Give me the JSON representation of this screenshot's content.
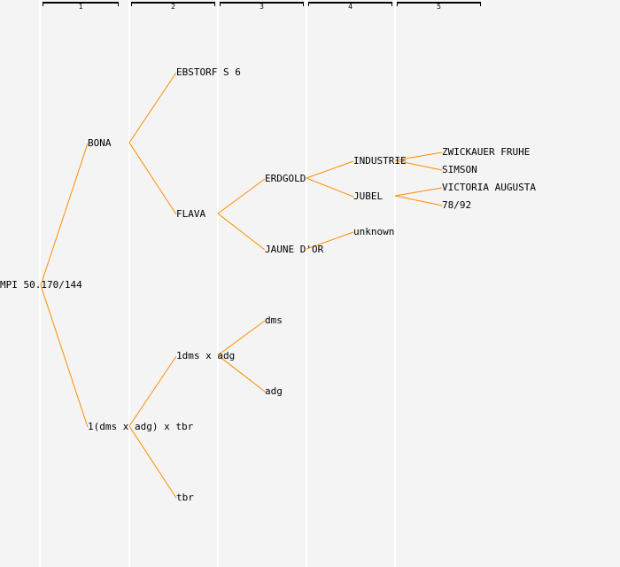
{
  "generations": [
    "1",
    "2",
    "3",
    "4",
    "5"
  ],
  "line_color": "#ff8c00",
  "nodes": {
    "root": "MPI 50.170/144",
    "bona": "BONA",
    "cross1": "1(dms x adg) x tbr",
    "ebstorf": "EBSTORF S 6",
    "flava": "FLAVA",
    "cross2": "1dms x adg",
    "tbr": "tbr",
    "erdgold": "ERDGOLD",
    "jaune": "JAUNE D'OR",
    "dms": "dms",
    "adg": "adg",
    "industrie": "INDUSTRIE",
    "jubel": "JUBEL",
    "unknown": "unknown",
    "zwickauer": "ZWICKAUER FRUHE",
    "simson": "SIMSON",
    "victoria": "VICTORIA AUGUSTA",
    "n7892": "78/92"
  }
}
